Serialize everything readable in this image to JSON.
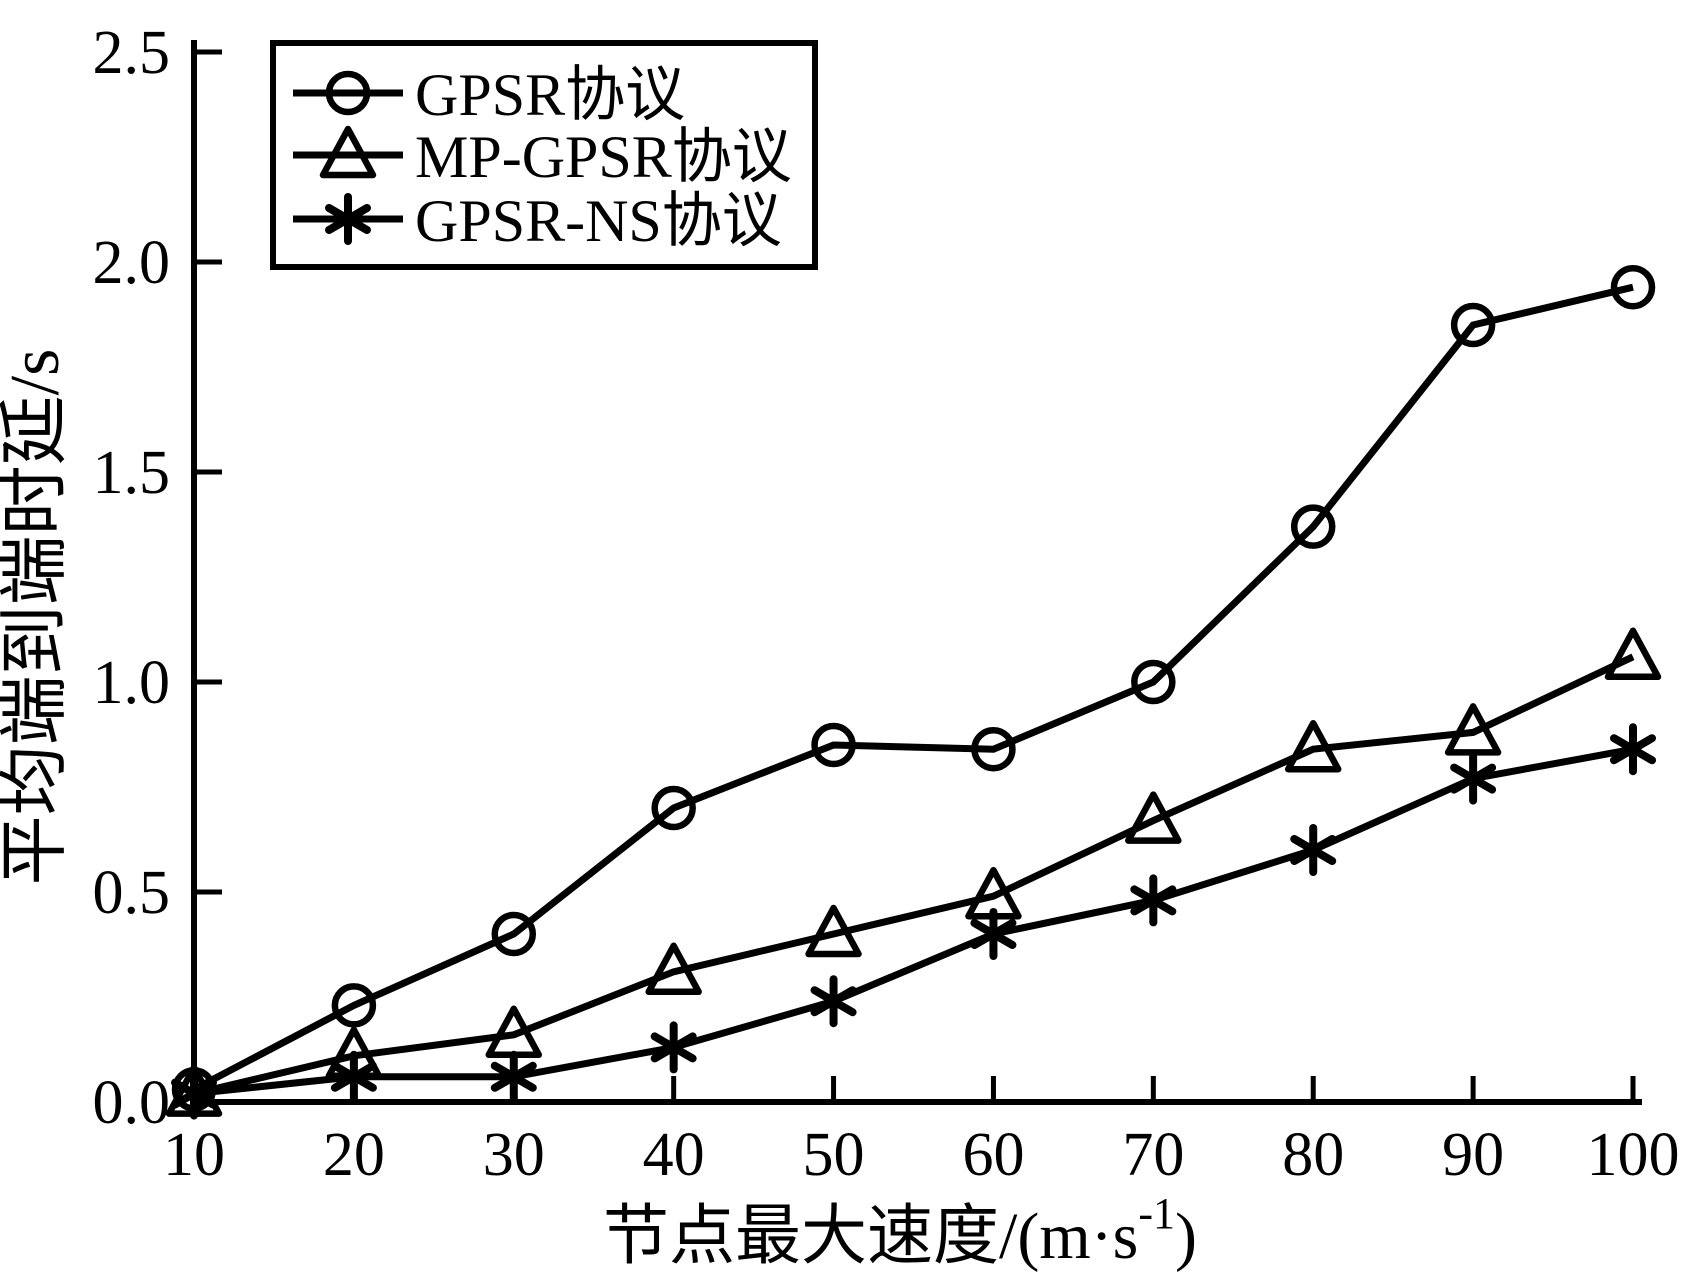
{
  "page": {
    "background": "#ffffff",
    "ink": "#000000"
  },
  "chart_data": {
    "type": "line",
    "title": "",
    "xlabel": "节点最大速度/(m·s⁻¹)",
    "xlabel_parts": {
      "base": "节点最大速度/(m·s",
      "sup": "-1",
      "close": ")"
    },
    "ylabel": "平均端到端时延/s",
    "xlim": [
      10,
      100
    ],
    "ylim": [
      0,
      2.5
    ],
    "xticks": [
      "10",
      "20",
      "30",
      "40",
      "50",
      "60",
      "70",
      "80",
      "90",
      "100"
    ],
    "yticks": [
      "0.0",
      "0.5",
      "1.0",
      "1.5",
      "2.0",
      "2.5"
    ],
    "grid": false,
    "legend": {
      "position": "top-left",
      "border": true
    },
    "x": [
      10,
      20,
      30,
      40,
      50,
      60,
      70,
      80,
      90,
      100
    ],
    "series": [
      {
        "name": "GPSR协议",
        "marker": "circle",
        "color": "#000000",
        "values": [
          0.03,
          0.23,
          0.4,
          0.7,
          0.85,
          0.84,
          1.0,
          1.37,
          1.85,
          1.94
        ]
      },
      {
        "name": "MP-GPSR协议",
        "marker": "triangle",
        "color": "#000000",
        "values": [
          0.02,
          0.11,
          0.16,
          0.31,
          0.4,
          0.49,
          0.67,
          0.84,
          0.88,
          1.06
        ]
      },
      {
        "name": "GPSR-NS协议",
        "marker": "asterisk",
        "color": "#000000",
        "values": [
          0.02,
          0.06,
          0.06,
          0.13,
          0.24,
          0.4,
          0.48,
          0.6,
          0.77,
          0.84
        ]
      }
    ]
  }
}
